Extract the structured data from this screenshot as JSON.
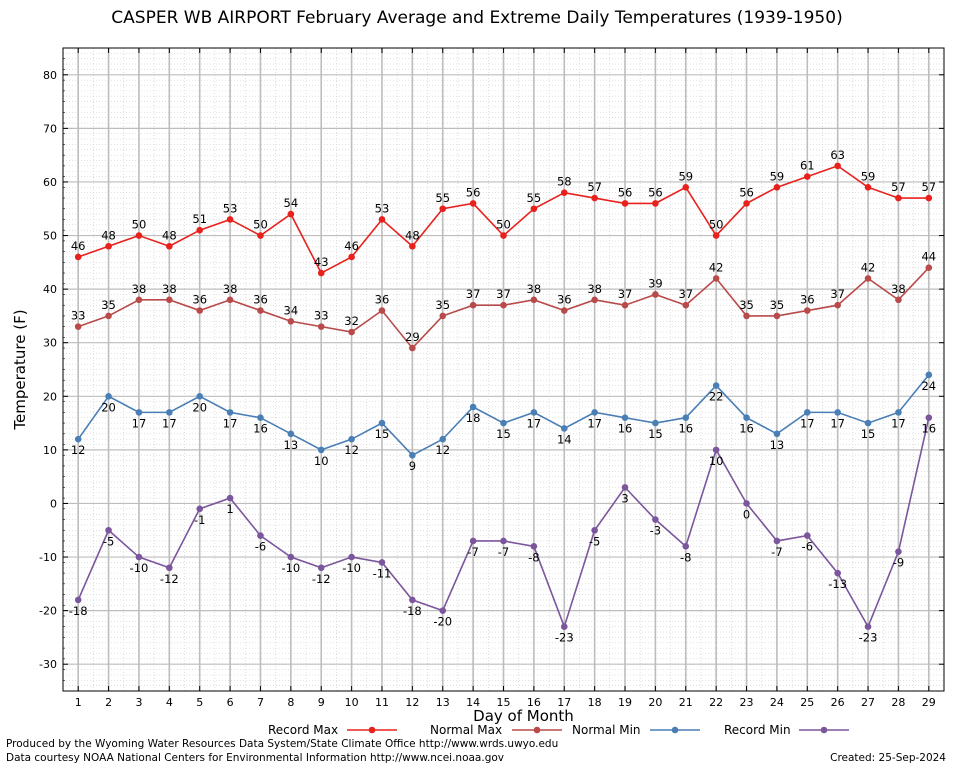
{
  "chart_data": {
    "type": "line",
    "title": "CASPER WB AIRPORT February Average and Extreme Daily Temperatures (1939-1950)",
    "xlabel": "Day of Month",
    "ylabel": "Temperature (F)",
    "ylim": [
      -35,
      85
    ],
    "yticks": [
      -30,
      -20,
      -10,
      0,
      10,
      20,
      30,
      40,
      50,
      60,
      70,
      80
    ],
    "grid": true,
    "legend": "bottom",
    "x": [
      1,
      2,
      3,
      4,
      5,
      6,
      7,
      8,
      9,
      10,
      11,
      12,
      13,
      14,
      15,
      16,
      17,
      18,
      19,
      20,
      21,
      22,
      23,
      24,
      25,
      26,
      27,
      28,
      29
    ],
    "series": [
      {
        "name": "Record Max",
        "color": "#e8211d",
        "label_pos": "above",
        "values": [
          46,
          48,
          50,
          48,
          51,
          53,
          50,
          54,
          43,
          46,
          53,
          48,
          55,
          56,
          50,
          55,
          58,
          57,
          56,
          56,
          59,
          50,
          56,
          59,
          61,
          63,
          59,
          57,
          57
        ]
      },
      {
        "name": "Normal Max",
        "color": "#b84a4a",
        "label_pos": "above",
        "values": [
          33,
          35,
          38,
          38,
          36,
          38,
          36,
          34,
          33,
          32,
          36,
          29,
          35,
          37,
          37,
          38,
          36,
          38,
          37,
          39,
          37,
          42,
          35,
          35,
          36,
          37,
          42,
          38,
          44
        ]
      },
      {
        "name": "Normal Min",
        "color": "#4a7fb5",
        "label_pos": "below",
        "values": [
          12,
          20,
          17,
          17,
          20,
          17,
          16,
          13,
          10,
          12,
          15,
          9,
          12,
          18,
          15,
          17,
          14,
          17,
          16,
          15,
          16,
          22,
          16,
          13,
          17,
          17,
          15,
          17,
          24
        ]
      },
      {
        "name": "Record Min",
        "color": "#7b569c",
        "label_pos": "below",
        "values": [
          -18,
          -5,
          -10,
          -12,
          -1,
          1,
          -6,
          -10,
          -12,
          -10,
          -11,
          -18,
          -20,
          -7,
          -7,
          -8,
          -23,
          -5,
          3,
          -3,
          -8,
          10,
          0,
          -7,
          -6,
          -13,
          -23,
          -9,
          16
        ]
      }
    ]
  },
  "footer": {
    "produced_by": "Produced by the Wyoming Water Resources Data System/State Climate Office http://www.wrds.uwyo.edu",
    "data_courtesy": "Data courtesy NOAA National Centers for Environmental Information http://www.ncei.noaa.gov",
    "created": "Created:  25-Sep-2024"
  }
}
